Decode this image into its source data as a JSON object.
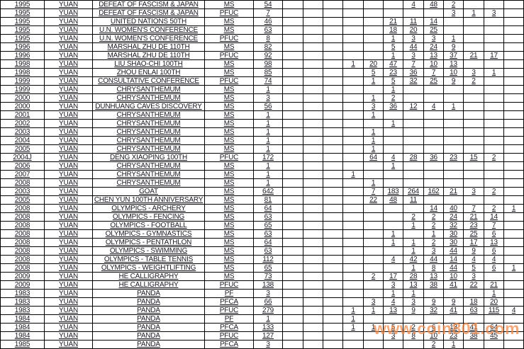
{
  "watermark": {
    "text": "www.coin801.com",
    "color": "#f08a4c"
  },
  "table": {
    "column_keys": [
      "year",
      "denomination",
      "description",
      "grade_type",
      "total",
      "g1",
      "g2",
      "g3",
      "g4",
      "g5",
      "g6",
      "g7",
      "g8",
      "g9",
      "g10",
      "g11",
      "g12"
    ],
    "rows": [
      {
        "year": "1995",
        "denom": "YUAN",
        "desc": "DEFEAT OF FASCISM & JAPAN",
        "type": "MS",
        "total": "54",
        "grades": [
          "",
          "",
          "",
          "",
          "",
          "",
          "4",
          "48",
          "2",
          "",
          "",
          ""
        ]
      },
      {
        "year": "1995",
        "denom": "YUAN",
        "desc": "DEFEAT OF FASCISM & JAPAN",
        "type": "PFUC",
        "total": "7",
        "grades": [
          "",
          "",
          "",
          "",
          "",
          "",
          "",
          "",
          "3",
          "1",
          "3",
          ""
        ]
      },
      {
        "year": "1995",
        "denom": "YUAN",
        "desc": "UNITED NATIONS 50TH",
        "type": "MS",
        "total": "46",
        "grades": [
          "",
          "",
          "",
          "",
          "",
          "21",
          "11",
          "14",
          "",
          "",
          "",
          ""
        ]
      },
      {
        "year": "1995",
        "denom": "YUAN",
        "desc": "U.N. WOMEN'S CONFERENCE",
        "type": "MS",
        "total": "63",
        "grades": [
          "",
          "",
          "",
          "",
          "",
          "18",
          "20",
          "25",
          "",
          "",
          "",
          ""
        ]
      },
      {
        "year": "1995",
        "denom": "YUAN",
        "desc": "U.N. WOMEN'S CONFERENCE",
        "type": "PFUC",
        "total": "8",
        "grades": [
          "",
          "",
          "",
          "",
          "",
          "1",
          "3",
          "3",
          "1",
          "",
          "",
          ""
        ]
      },
      {
        "year": "1996",
        "denom": "YUAN",
        "desc": "MARSHAL ZHU DE 110TH",
        "type": "MS",
        "total": "82",
        "grades": [
          "",
          "",
          "",
          "",
          "",
          "5",
          "44",
          "24",
          "9",
          "",
          "",
          ""
        ]
      },
      {
        "year": "1996",
        "denom": "YUAN",
        "desc": "MARSHAL ZHU DE 110TH",
        "type": "PFUC",
        "total": "92",
        "grades": [
          "",
          "",
          "",
          "",
          "",
          "1",
          "3",
          "13",
          "37",
          "21",
          "17",
          ""
        ]
      },
      {
        "year": "1998",
        "denom": "YUAN",
        "desc": "LIU SHAO-CHI 100TH",
        "type": "MS",
        "total": "98",
        "grades": [
          "",
          "",
          "",
          "1",
          "20",
          "47",
          "7",
          "10",
          "13",
          "",
          "",
          ""
        ]
      },
      {
        "year": "1998",
        "denom": "YUAN",
        "desc": "ZHOU ENLAI 100TH",
        "type": "MS",
        "total": "85",
        "grades": [
          "",
          "",
          "",
          "",
          "5",
          "23",
          "36",
          "7",
          "10",
          "3",
          "1",
          ""
        ]
      },
      {
        "year": "1999",
        "denom": "YUAN",
        "desc": "CONSULTATIVE CONFERENCE",
        "type": "PFUC",
        "total": "74",
        "grades": [
          "",
          "",
          "",
          "",
          "1",
          "5",
          "32",
          "25",
          "9",
          "2",
          "",
          ""
        ]
      },
      {
        "year": "1999",
        "denom": "YUAN",
        "desc": "CHRYSANTHEMUM",
        "type": "MS",
        "total": "1",
        "grades": [
          "",
          "",
          "",
          "",
          "",
          "1",
          "",
          "",
          "",
          "",
          "",
          ""
        ]
      },
      {
        "year": "2000",
        "denom": "YUAN",
        "desc": "CHRYSANTHEMUM",
        "type": "MS",
        "total": "3",
        "grades": [
          "",
          "",
          "",
          "",
          "1",
          "2",
          "",
          "",
          "",
          "",
          "",
          ""
        ]
      },
      {
        "year": "2000",
        "denom": "YUAN",
        "desc": "DUNHUANG CAVES DISCOVERY",
        "type": "MS",
        "total": "56",
        "grades": [
          "",
          "",
          "",
          "",
          "3",
          "36",
          "12",
          "4",
          "1",
          "",
          "",
          ""
        ]
      },
      {
        "year": "2001",
        "denom": "YUAN",
        "desc": "CHRYSANTHEMUM",
        "type": "MS",
        "total": "1",
        "grades": [
          "",
          "",
          "",
          "",
          "1",
          "",
          "",
          "",
          "",
          "",
          "",
          ""
        ]
      },
      {
        "year": "2002",
        "denom": "YUAN",
        "desc": "CHRYSANTHEMUM",
        "type": "MS",
        "total": "1",
        "grades": [
          "",
          "",
          "",
          "",
          "",
          "1",
          "",
          "",
          "",
          "",
          "",
          ""
        ]
      },
      {
        "year": "2003",
        "denom": "YUAN",
        "desc": "CHRYSANTHEMUM",
        "type": "MS",
        "total": "1",
        "grades": [
          "",
          "",
          "",
          "",
          "1",
          "",
          "",
          "",
          "",
          "",
          "",
          ""
        ]
      },
      {
        "year": "2004",
        "denom": "YUAN",
        "desc": "CHRYSANTHEMUM",
        "type": "MS",
        "total": "1",
        "grades": [
          "",
          "",
          "",
          "",
          "1",
          "",
          "",
          "",
          "",
          "",
          "",
          ""
        ]
      },
      {
        "year": "2005",
        "denom": "YUAN",
        "desc": "CHRYSANTHEMUM",
        "type": "MS",
        "total": "1",
        "grades": [
          "",
          "",
          "",
          "",
          "1",
          "",
          "",
          "",
          "",
          "",
          "",
          ""
        ]
      },
      {
        "year": "2004J",
        "denom": "YUAN",
        "desc": "DENG XIAOPING 100TH",
        "type": "PFUC",
        "total": "172",
        "grades": [
          "",
          "",
          "",
          "",
          "64",
          "4",
          "28",
          "36",
          "23",
          "15",
          "2",
          ""
        ]
      },
      {
        "year": "2006",
        "denom": "YUAN",
        "desc": "CHRYSANTHEMUM",
        "type": "MS",
        "total": "1",
        "grades": [
          "",
          "",
          "",
          "",
          "",
          "1",
          "",
          "",
          "",
          "",
          "",
          ""
        ]
      },
      {
        "year": "2007",
        "denom": "YUAN",
        "desc": "CHRYSANTHEMUM",
        "type": "MS",
        "total": "1",
        "grades": [
          "",
          "",
          "",
          "1",
          "",
          "",
          "",
          "",
          "",
          "",
          "",
          ""
        ]
      },
      {
        "year": "2008",
        "denom": "YUAN",
        "desc": "CHRYSANTHEMUM",
        "type": "MS",
        "total": "1",
        "grades": [
          "",
          "",
          "",
          "",
          "1",
          "",
          "",
          "",
          "",
          "",
          "",
          ""
        ]
      },
      {
        "year": "2003",
        "denom": "YUAN",
        "desc": "GOAT",
        "type": "MS",
        "total": "642",
        "grades": [
          "",
          "",
          "",
          "",
          "7",
          "183",
          "264",
          "162",
          "21",
          "3",
          "2",
          ""
        ]
      },
      {
        "year": "2005",
        "denom": "YUAN",
        "desc": "CHEN YUN 100TH ANNIVERSARY",
        "type": "MS",
        "total": "81",
        "grades": [
          "",
          "",
          "",
          "",
          "22",
          "48",
          "11",
          "",
          "",
          "",
          "",
          ""
        ]
      },
      {
        "year": "2008",
        "denom": "YUAN",
        "desc": "OLYMPICS - ARCHERY",
        "type": "MS",
        "total": "64",
        "grades": [
          "",
          "",
          "",
          "",
          "",
          "",
          "",
          "14",
          "40",
          "7",
          "2",
          "1"
        ]
      },
      {
        "year": "2008",
        "denom": "YUAN",
        "desc": "OLYMPICS - FENCING",
        "type": "MS",
        "total": "63",
        "grades": [
          "",
          "",
          "",
          "",
          "",
          "",
          "2",
          "2",
          "24",
          "21",
          "14",
          ""
        ]
      },
      {
        "year": "2008",
        "denom": "YUAN",
        "desc": "OLYMPICS - FOOTBALL",
        "type": "MS",
        "total": "65",
        "grades": [
          "",
          "",
          "",
          "",
          "",
          "",
          "1",
          "2",
          "32",
          "23",
          "7",
          ""
        ]
      },
      {
        "year": "2008",
        "denom": "YUAN",
        "desc": "OLYMPICS - GYMNASTICS",
        "type": "MS",
        "total": "63",
        "grades": [
          "",
          "",
          "",
          "",
          "",
          "1",
          "",
          "1",
          "30",
          "25",
          "6",
          ""
        ]
      },
      {
        "year": "2008",
        "denom": "YUAN",
        "desc": "OLYMPICS - PENTATHLON",
        "type": "MS",
        "total": "64",
        "grades": [
          "",
          "",
          "",
          "",
          "",
          "1",
          "1",
          "2",
          "30",
          "17",
          "13",
          ""
        ]
      },
      {
        "year": "2008",
        "denom": "YUAN",
        "desc": "OLYMPICS - SWIMMING",
        "type": "MS",
        "total": "63",
        "grades": [
          "",
          "",
          "",
          "",
          "",
          "",
          "1",
          "3",
          "44",
          "9",
          "6",
          ""
        ]
      },
      {
        "year": "2008",
        "denom": "YUAN",
        "desc": "OLYMPICS - TABLE TENNIS",
        "type": "MS",
        "total": "112",
        "grades": [
          "",
          "",
          "",
          "",
          "",
          "4",
          "42",
          "44",
          "14",
          "4",
          "4",
          ""
        ]
      },
      {
        "year": "2008",
        "denom": "YUAN",
        "desc": "OLYMPICS - WEIGHTLIFTING",
        "type": "MS",
        "total": "65",
        "grades": [
          "",
          "",
          "",
          "",
          "",
          "",
          "1",
          "8",
          "44",
          "5",
          "6",
          "1"
        ]
      },
      {
        "year": "2009",
        "denom": "YUAN",
        "desc": "HE CALLIGRAPHY",
        "type": "MS",
        "total": "73",
        "grades": [
          "",
          "",
          "",
          "",
          "2",
          "17",
          "28",
          "13",
          "10",
          "3",
          "",
          ""
        ]
      },
      {
        "year": "2009",
        "denom": "YUAN",
        "desc": "HE CALLIGRAPHY",
        "type": "PFUC",
        "total": "138",
        "grades": [
          "",
          "",
          "",
          "",
          "",
          "3",
          "13",
          "38",
          "41",
          "22",
          "21",
          ""
        ]
      },
      {
        "year": "1983",
        "denom": "YUAN",
        "desc": "PANDA",
        "type": "PF",
        "total": "3",
        "grades": [
          "",
          "",
          "",
          "",
          "",
          "1",
          "1",
          "",
          "",
          "",
          "1",
          ""
        ]
      },
      {
        "year": "1983",
        "denom": "YUAN",
        "desc": "PANDA",
        "type": "PFCA",
        "total": "66",
        "grades": [
          "",
          "",
          "",
          "",
          "3",
          "4",
          "3",
          "9",
          "9",
          "18",
          "20",
          ""
        ]
      },
      {
        "year": "1983",
        "denom": "YUAN",
        "desc": "PANDA",
        "type": "PFUC",
        "total": "279",
        "grades": [
          "",
          "",
          "",
          "1",
          "1",
          "13",
          "9",
          "32",
          "41",
          "63",
          "115",
          "4"
        ]
      },
      {
        "year": "1984",
        "denom": "YUAN",
        "desc": "PANDA",
        "type": "PF",
        "total": "1",
        "grades": [
          "",
          "",
          "",
          "1",
          "",
          "",
          "",
          "",
          "",
          "",
          "",
          ""
        ]
      },
      {
        "year": "1984",
        "denom": "YUAN",
        "desc": "PANDA",
        "type": "PFCA",
        "total": "133",
        "grades": [
          "",
          "",
          "",
          "1",
          "1",
          "5",
          "2",
          "6",
          "13",
          "41",
          "64",
          ""
        ]
      },
      {
        "year": "1984",
        "denom": "YUAN",
        "desc": "PANDA",
        "type": "PFUC",
        "total": "127",
        "grades": [
          "",
          "",
          "",
          "",
          "",
          "3",
          "8",
          "10",
          "23",
          "38",
          "45",
          ""
        ]
      },
      {
        "year": "1985",
        "denom": "YUAN",
        "desc": "PANDA",
        "type": "PFCA",
        "total": "3",
        "grades": [
          "",
          "",
          "",
          "",
          "",
          "",
          "",
          "2",
          "1",
          "",
          "",
          ""
        ]
      }
    ]
  }
}
